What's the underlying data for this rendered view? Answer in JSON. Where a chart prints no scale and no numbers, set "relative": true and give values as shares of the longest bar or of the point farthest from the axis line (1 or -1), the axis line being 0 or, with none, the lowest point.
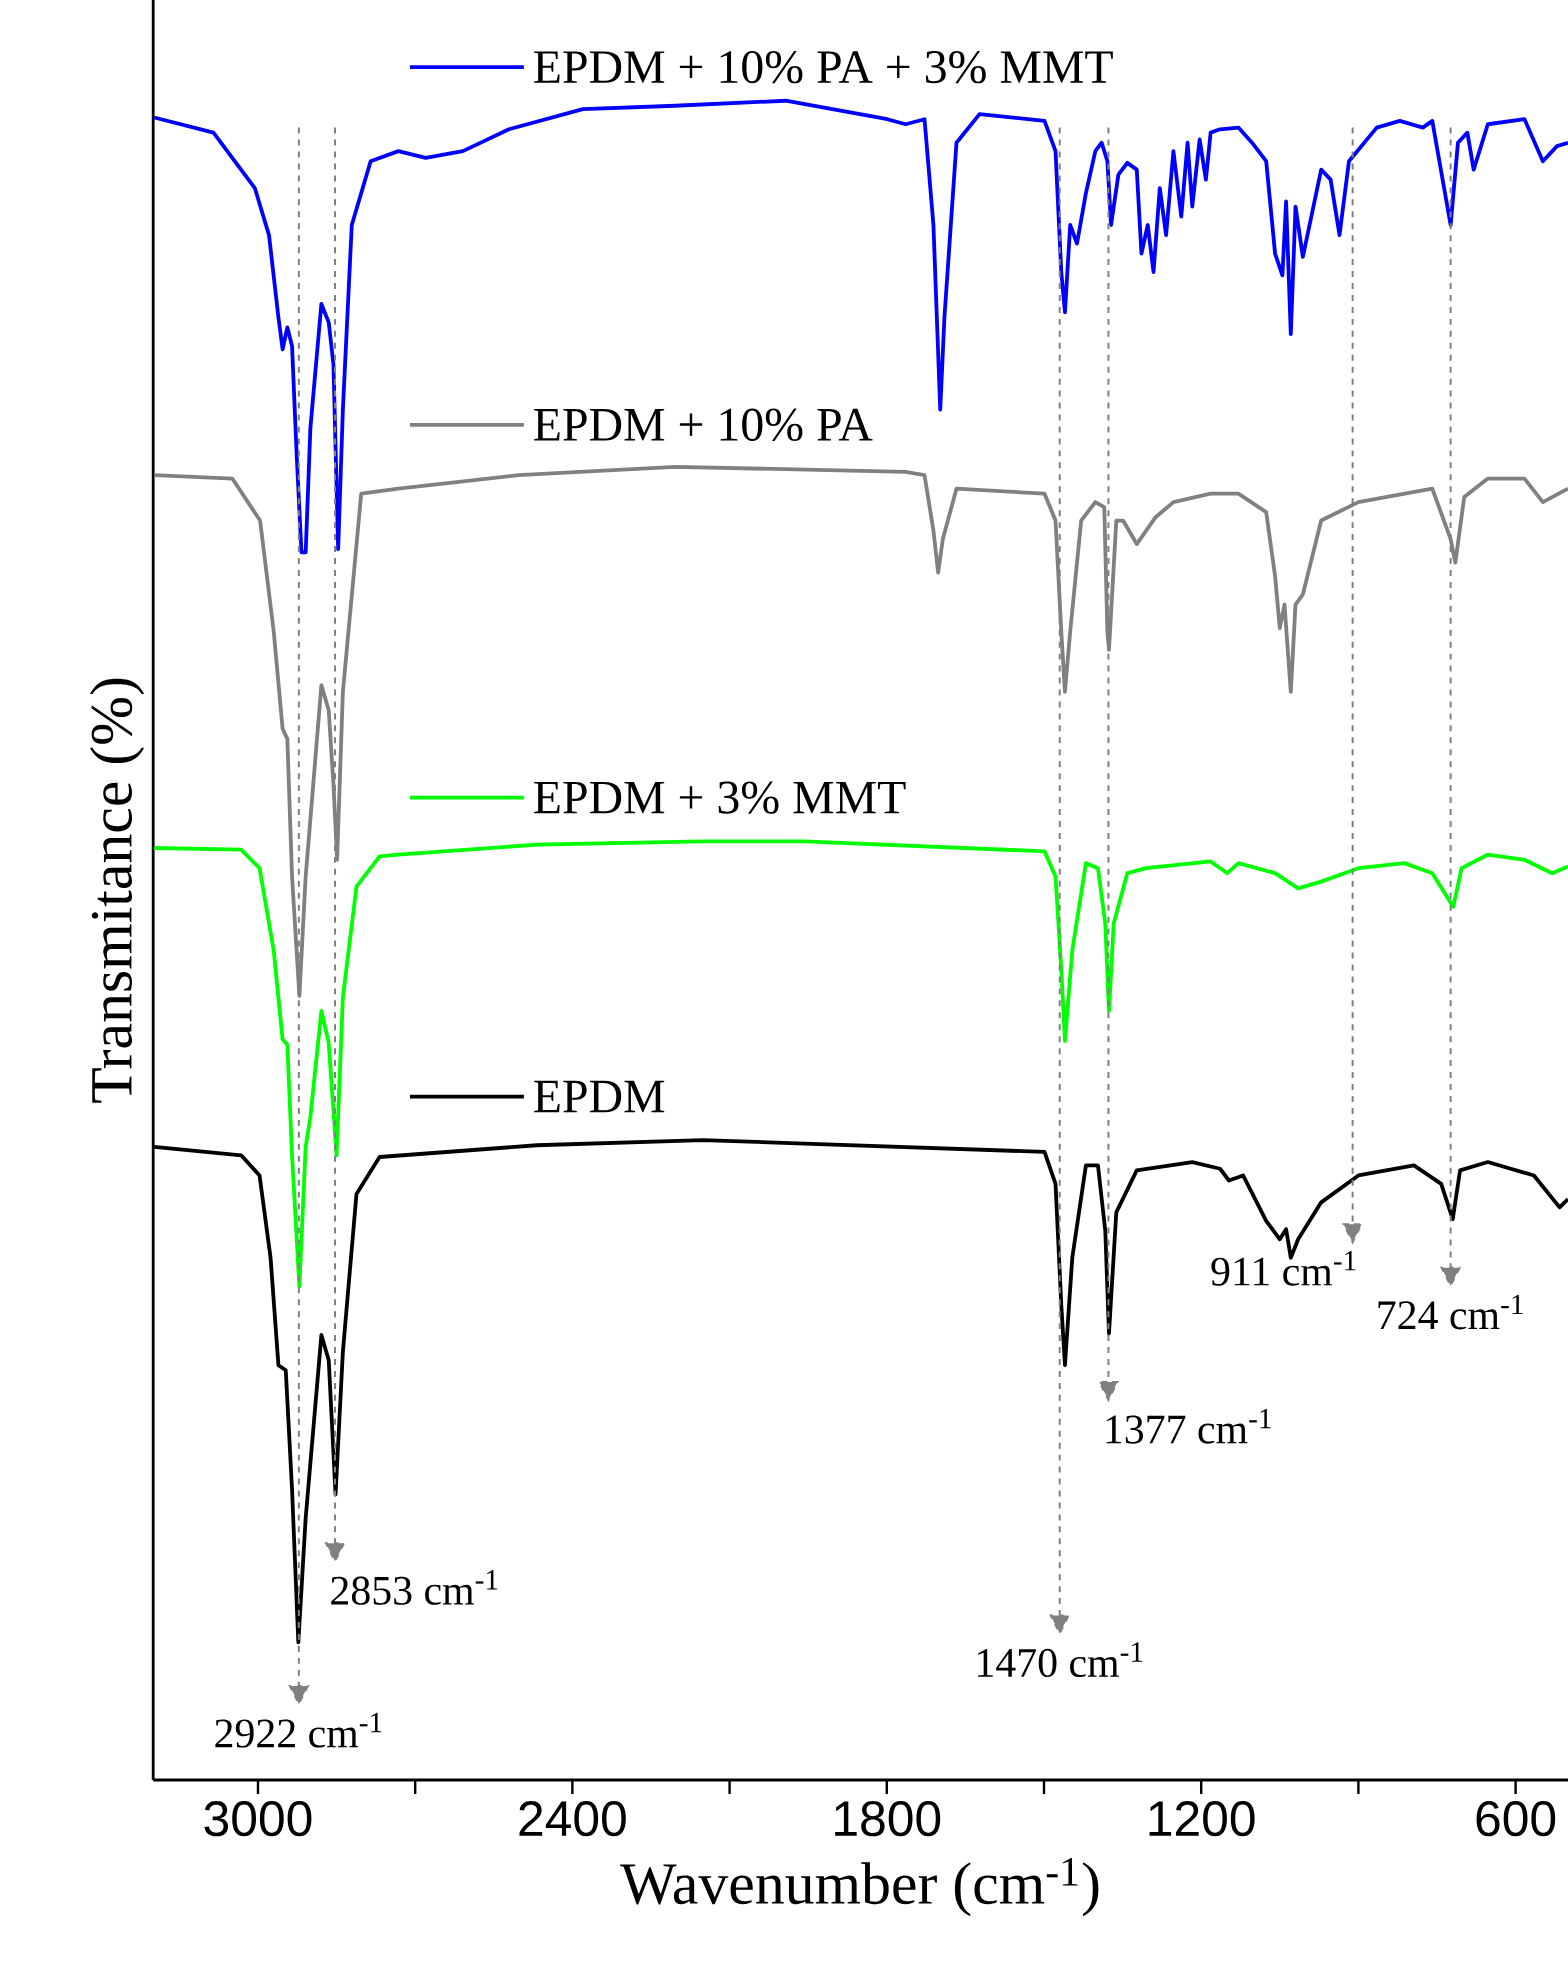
{
  "chart_data": {
    "type": "line",
    "relative": true,
    "xlabel": "Wavenumber (cm$^{-1}$)",
    "ylabel": "Transmitance (%)",
    "xlim": [
      3200,
      500
    ],
    "xticks": [
      3000,
      {
        "value": 2700,
        "label": null
      },
      2400,
      {
        "value": 2100,
        "label": null
      },
      1800,
      {
        "value": 1500,
        "label": null
      },
      1200,
      {
        "value": 900,
        "label": null
      },
      600
    ],
    "legend": "left",
    "ref_lines": [
      {
        "axis": "x",
        "value": 2922,
        "label": "2922 cm$^{-1}$",
        "color": "#808080",
        "line_style": "dashed"
      },
      {
        "axis": "x",
        "value": 2853,
        "label": "2853 cm$^{-1}$",
        "color": "#808080",
        "line_style": "dashed"
      },
      {
        "axis": "x",
        "value": 1470,
        "label": "1470 cm$^{-1}$",
        "color": "#808080",
        "line_style": "dashed"
      },
      {
        "axis": "x",
        "value": 1377,
        "label": "1377 cm$^{-1}$",
        "color": "#808080",
        "line_style": "dashed"
      },
      {
        "axis": "x",
        "value": 911,
        "label": "911 cm$^{-1}$",
        "color": "#808080",
        "line_style": "dashed"
      },
      {
        "axis": "x",
        "value": 724,
        "label": "724 cm$^{-1}$",
        "color": "#808080",
        "line_style": "dashed"
      }
    ],
    "series": [
      {
        "name": "EPDM + 10% PA + 3% MMT",
        "color": "#0000ff",
        "x": [
          3198,
          3085,
          3006,
          2979,
          2961,
          2953,
          2944,
          2935,
          2926,
          2917,
          2909,
          2900,
          2879,
          2865,
          2856,
          2847,
          2838,
          2821,
          2785,
          2732,
          2680,
          2609,
          2521,
          2380,
          2204,
          1993,
          1799,
          1764,
          1728,
          1711,
          1698,
          1690,
          1667,
          1623,
          1499,
          1478,
          1467,
          1460,
          1450,
          1437,
          1420,
          1402,
          1390,
          1379,
          1372,
          1358,
          1341,
          1323,
          1314,
          1302,
          1291,
          1279,
          1267,
          1253,
          1238,
          1226,
          1217,
          1203,
          1191,
          1182,
          1164,
          1129,
          1103,
          1076,
          1059,
          1045,
          1038,
          1029,
          1020,
          1006,
          971,
          953,
          936,
          918,
          865,
          821,
          777,
          759,
          724,
          710,
          692,
          680,
          653,
          583,
          548,
          521,
          500
        ],
        "values": [
          0.99,
          0.981,
          0.948,
          0.92,
          0.871,
          0.852,
          0.865,
          0.854,
          0.788,
          0.731,
          0.731,
          0.805,
          0.879,
          0.868,
          0.843,
          0.733,
          0.816,
          0.926,
          0.964,
          0.97,
          0.966,
          0.97,
          0.983,
          0.995,
          0.997,
          1,
          0.989,
          0.986,
          0.989,
          0.926,
          0.816,
          0.871,
          0.975,
          0.992,
          0.988,
          0.97,
          0.898,
          0.874,
          0.926,
          0.915,
          0.945,
          0.97,
          0.975,
          0.964,
          0.926,
          0.956,
          0.963,
          0.959,
          0.909,
          0.926,
          0.898,
          0.948,
          0.92,
          0.97,
          0.931,
          0.975,
          0.937,
          0.977,
          0.953,
          0.981,
          0.983,
          0.984,
          0.975,
          0.964,
          0.909,
          0.896,
          0.94,
          0.861,
          0.937,
          0.907,
          0.959,
          0.953,
          0.92,
          0.964,
          0.984,
          0.988,
          0.984,
          0.988,
          0.926,
          0.975,
          0.981,
          0.959,
          0.986,
          0.989,
          0.964,
          0.973,
          0.975
        ]
      },
      {
        "name": "EPDM + 10% PA",
        "color": "#808080",
        "x": [
          3198,
          3049,
          2996,
          2970,
          2953,
          2944,
          2935,
          2921,
          2909,
          2879,
          2865,
          2856,
          2849,
          2838,
          2803,
          2732,
          2503,
          2204,
          1764,
          1728,
          1711,
          1702,
          1693,
          1667,
          1499,
          1478,
          1467,
          1460,
          1450,
          1429,
          1402,
          1385,
          1379,
          1376,
          1362,
          1349,
          1323,
          1287,
          1253,
          1182,
          1129,
          1076,
          1059,
          1050,
          1041,
          1029,
          1020,
          1006,
          971,
          900,
          759,
          724,
          715,
          698,
          653,
          583,
          548,
          500
        ],
        "values": [
          0.777,
          0.775,
          0.75,
          0.684,
          0.626,
          0.62,
          0.538,
          0.467,
          0.538,
          0.652,
          0.637,
          0.593,
          0.548,
          0.648,
          0.766,
          0.769,
          0.777,
          0.782,
          0.779,
          0.777,
          0.744,
          0.719,
          0.739,
          0.769,
          0.766,
          0.75,
          0.684,
          0.648,
          0.684,
          0.75,
          0.761,
          0.758,
          0.684,
          0.673,
          0.75,
          0.75,
          0.736,
          0.752,
          0.761,
          0.766,
          0.766,
          0.755,
          0.717,
          0.686,
          0.7,
          0.648,
          0.7,
          0.706,
          0.75,
          0.761,
          0.769,
          0.739,
          0.725,
          0.764,
          0.775,
          0.775,
          0.761,
          0.769
        ]
      },
      {
        "name": "EPDM + 3% MMT",
        "color": "#00ff00",
        "x": [
          3198,
          3032,
          2997,
          2970,
          2953,
          2944,
          2935,
          2921,
          2909,
          2900,
          2879,
          2865,
          2850,
          2838,
          2812,
          2768,
          2732,
          2468,
          2151,
          1957,
          1499,
          1478,
          1467,
          1460,
          1446,
          1420,
          1397,
          1383,
          1376,
          1367,
          1341,
          1305,
          1182,
          1150,
          1129,
          1059,
          1015,
          971,
          900,
          812,
          759,
          719,
          703,
          653,
          583,
          530,
          500
        ],
        "values": [
          0.555,
          0.554,
          0.543,
          0.494,
          0.441,
          0.438,
          0.372,
          0.294,
          0.377,
          0.395,
          0.458,
          0.439,
          0.372,
          0.466,
          0.532,
          0.55,
          0.551,
          0.557,
          0.559,
          0.559,
          0.553,
          0.538,
          0.483,
          0.44,
          0.494,
          0.546,
          0.543,
          0.51,
          0.458,
          0.51,
          0.54,
          0.543,
          0.547,
          0.54,
          0.546,
          0.54,
          0.531,
          0.535,
          0.543,
          0.546,
          0.54,
          0.52,
          0.543,
          0.551,
          0.548,
          0.54,
          0.544
        ]
      },
      {
        "name": "EPDM",
        "color": "#000000",
        "x": [
          3198,
          3032,
          2997,
          2976,
          2961,
          2947,
          2935,
          2923,
          2909,
          2879,
          2865,
          2852,
          2838,
          2812,
          2768,
          2468,
          2151,
          1957,
          1499,
          1478,
          1467,
          1460,
          1446,
          1420,
          1397,
          1383,
          1376,
          1362,
          1323,
          1217,
          1164,
          1147,
          1120,
          1076,
          1050,
          1038,
          1029,
          1015,
          971,
          900,
          794,
          742,
          720,
          706,
          653,
          565,
          516,
          500
        ],
        "values": [
          0.377,
          0.372,
          0.36,
          0.311,
          0.247,
          0.244,
          0.173,
          0.082,
          0.156,
          0.265,
          0.25,
          0.17,
          0.255,
          0.349,
          0.371,
          0.378,
          0.381,
          0.379,
          0.374,
          0.355,
          0.283,
          0.247,
          0.311,
          0.366,
          0.366,
          0.327,
          0.266,
          0.338,
          0.363,
          0.368,
          0.364,
          0.357,
          0.36,
          0.333,
          0.322,
          0.328,
          0.311,
          0.322,
          0.344,
          0.36,
          0.366,
          0.355,
          0.334,
          0.363,
          0.368,
          0.36,
          0.341,
          0.346
        ]
      }
    ]
  }
}
